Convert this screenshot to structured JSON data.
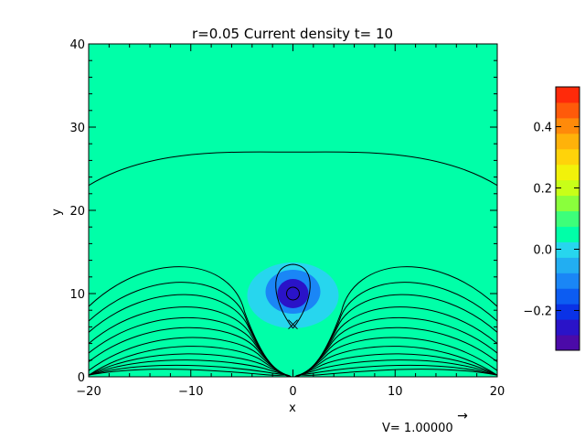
{
  "chart_data": {
    "type": "heatmap",
    "title": "r=0.05 Current density t= 10",
    "xlabel": "x",
    "ylabel": "y",
    "xlim": [
      -20,
      20
    ],
    "ylim": [
      0,
      40
    ],
    "x_ticks": [
      -20,
      -10,
      0,
      10,
      20
    ],
    "x_tick_labels": [
      "−20",
      "−10",
      "0",
      "10",
      "20"
    ],
    "y_ticks": [
      0,
      10,
      20,
      30,
      40
    ],
    "y_tick_labels": [
      "0",
      "10",
      "20",
      "30",
      "40"
    ],
    "background_value": 0.0,
    "feature": {
      "description": "current density concentrated near a point below the contour cusp",
      "center": [
        0,
        10
      ],
      "core_value": -0.3,
      "halo_value": -0.08
    },
    "colorbar": {
      "min": -0.33,
      "max": 0.53,
      "ticks": [
        0.4,
        0.2,
        0.0,
        -0.2
      ],
      "tick_labels": [
        "0.4",
        "0.2",
        "0.0",
        "−0.2"
      ],
      "colors": [
        "#4b0aa8",
        "#2a13c8",
        "#0a32e6",
        "#0c5cf2",
        "#1a86f6",
        "#22aef2",
        "#27d6ee",
        "#00ffa8",
        "#3dff7a",
        "#8aff3c",
        "#c8ff18",
        "#f2f20a",
        "#ffd30a",
        "#ffb20a",
        "#ff8a0a",
        "#ff5a0a",
        "#ff2a0a"
      ]
    },
    "contours": [
      {
        "outer_x": 20,
        "top_y": 27.0
      },
      {
        "outer_x": 20,
        "top_y": 14.2
      },
      {
        "outer_x": 20,
        "top_y": 12.2
      },
      {
        "outer_x": 20,
        "top_y": 10.6
      },
      {
        "outer_x": 20,
        "top_y": 9.0
      },
      {
        "outer_x": 20,
        "top_y": 7.6
      },
      {
        "outer_x": 20,
        "top_y": 6.3
      },
      {
        "outer_x": 20,
        "top_y": 5.0
      },
      {
        "outer_x": 20,
        "top_y": 3.8
      },
      {
        "outer_x": 20,
        "top_y": 2.7
      },
      {
        "outer_x": 20,
        "top_y": 1.8
      },
      {
        "outer_x": 20,
        "top_y": 1.0
      },
      {
        "outer_x": 20,
        "top_y": 0.4
      }
    ],
    "arrow_label": "V= 1.00000",
    "arrow_symbol": "→"
  },
  "colors": {
    "background_field": "#00ffa8",
    "halo": "#27d6ee",
    "core": "#2a13c8",
    "contour_line": "#000000"
  }
}
